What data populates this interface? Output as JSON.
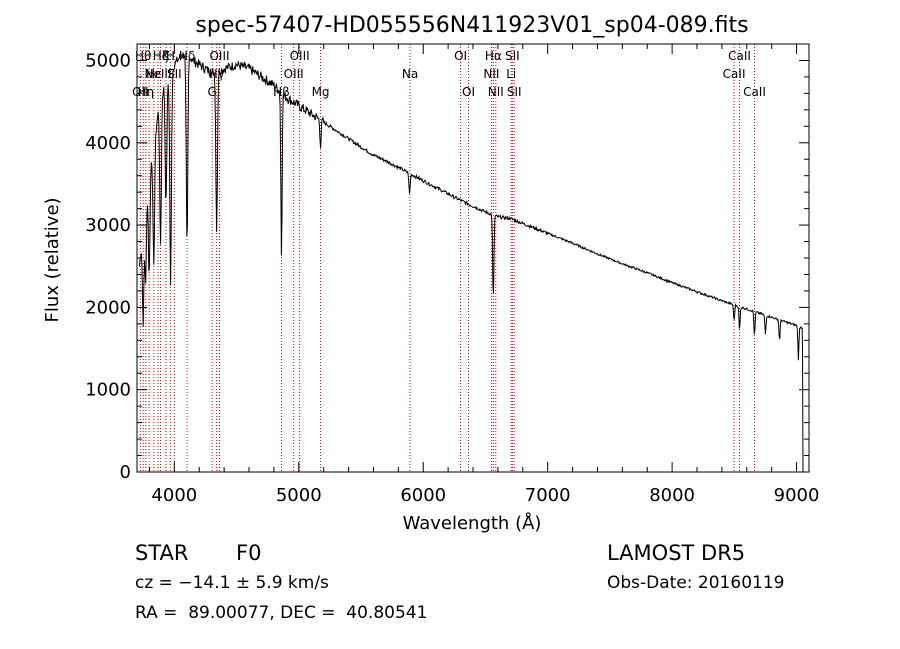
{
  "chart_data": {
    "type": "line",
    "title": "spec-57407-HD055556N411923V01_sp04-089.fits",
    "xlabel": "Wavelength (Å)",
    "ylabel": "Flux (relative)",
    "xlim": [
      3700,
      9100
    ],
    "ylim": [
      0,
      5200
    ],
    "x_ticks": [
      4000,
      5000,
      6000,
      7000,
      8000,
      9000
    ],
    "y_ticks": [
      0,
      1000,
      2000,
      3000,
      4000,
      5000
    ],
    "series": [
      {
        "x": [
          3700,
          3720,
          3760,
          3800,
          3840,
          3880,
          3920,
          3960,
          4000,
          4050,
          4100,
          4150,
          4200,
          4300,
          4400,
          4500,
          4600,
          4700,
          4800,
          4900,
          5000,
          5100,
          5200,
          5300,
          5400,
          5500,
          5600,
          5700,
          5800,
          5900,
          6000,
          6100,
          6200,
          6300,
          6400,
          6500,
          6600,
          6700,
          6800,
          6900,
          7000,
          7200,
          7400,
          7600,
          7800,
          8000,
          8200,
          8400,
          8500,
          8600,
          8700,
          8800,
          8900,
          9000,
          9050
        ],
        "y": [
          1300,
          2500,
          3200,
          3700,
          4000,
          4500,
          4700,
          4800,
          4950,
          5050,
          5100,
          5000,
          4950,
          4850,
          4900,
          4950,
          4900,
          4800,
          4700,
          4550,
          4450,
          4350,
          4250,
          4150,
          4050,
          3950,
          3850,
          3780,
          3700,
          3620,
          3540,
          3460,
          3380,
          3300,
          3230,
          3160,
          3100,
          3080,
          3020,
          2960,
          2900,
          2780,
          2650,
          2530,
          2420,
          2300,
          2190,
          2080,
          2030,
          1980,
          1930,
          1880,
          1830,
          1780,
          1750
        ]
      }
    ],
    "absorption_lines": [
      {
        "x": 3750,
        "depth": 1200
      },
      {
        "x": 3770,
        "depth": 1000
      },
      {
        "x": 3798,
        "depth": 1300
      },
      {
        "x": 3835,
        "depth": 1500
      },
      {
        "x": 3889,
        "depth": 1800
      },
      {
        "x": 3933,
        "depth": 1500
      },
      {
        "x": 3970,
        "depth": 2600
      },
      {
        "x": 4102,
        "depth": 2400
      },
      {
        "x": 4340,
        "depth": 1900
      },
      {
        "x": 4861,
        "depth": 2000
      },
      {
        "x": 5175,
        "depth": 300
      },
      {
        "x": 5890,
        "depth": 250
      },
      {
        "x": 6563,
        "depth": 1050
      },
      {
        "x": 8498,
        "depth": 200
      },
      {
        "x": 8542,
        "depth": 300
      },
      {
        "x": 8662,
        "depth": 300
      },
      {
        "x": 8750,
        "depth": 230
      },
      {
        "x": 8863,
        "depth": 250
      },
      {
        "x": 9015,
        "depth": 400
      }
    ],
    "reference_lines": [
      {
        "x": 3727,
        "label": "OII",
        "row": 2
      },
      {
        "x": 3750,
        "label": "Hθ",
        "row": 0
      },
      {
        "x": 3771,
        "label": "Hη",
        "row": 2
      },
      {
        "x": 3798,
        "label": "",
        "row": 0
      },
      {
        "x": 3835,
        "label": "Hε",
        "row": 1
      },
      {
        "x": 3869,
        "label": "NeIII",
        "row": 1
      },
      {
        "x": 3889,
        "label": "Hζ",
        "row": 0
      },
      {
        "x": 3933,
        "label": "K",
        "row": 0
      },
      {
        "x": 3968,
        "label": "H",
        "row": 0
      },
      {
        "x": 4000,
        "label": "SII",
        "row": 1
      },
      {
        "x": 4102,
        "label": "Hδ",
        "row": 0
      },
      {
        "x": 4304,
        "label": "G",
        "row": 2
      },
      {
        "x": 4340,
        "label": "Hγ",
        "row": 1
      },
      {
        "x": 4363,
        "label": "OIII",
        "row": 0
      },
      {
        "x": 4861,
        "label": "Hβ",
        "row": 2
      },
      {
        "x": 4959,
        "label": "OIII",
        "row": 1
      },
      {
        "x": 5007,
        "label": "OIII",
        "row": 0
      },
      {
        "x": 5175,
        "label": "Mg",
        "row": 2
      },
      {
        "x": 5894,
        "label": "Na",
        "row": 1
      },
      {
        "x": 6300,
        "label": "OI",
        "row": 0
      },
      {
        "x": 6364,
        "label": "OI",
        "row": 2
      },
      {
        "x": 6548,
        "label": "NII",
        "row": 1
      },
      {
        "x": 6563,
        "label": "Hα",
        "row": 0
      },
      {
        "x": 6583,
        "label": "NII",
        "row": 2
      },
      {
        "x": 6707,
        "label": "Li",
        "row": 1
      },
      {
        "x": 6716,
        "label": "SII",
        "row": 0
      },
      {
        "x": 6731,
        "label": "SII",
        "row": 2
      },
      {
        "x": 8498,
        "label": "CaII",
        "row": 1
      },
      {
        "x": 8542,
        "label": "CaII",
        "row": 0
      },
      {
        "x": 8662,
        "label": "CaII",
        "row": 2
      }
    ]
  },
  "footer": {
    "object_class": "STAR",
    "subclass": "F0",
    "redshift": "cz = −14.1 ± 5.9 km/s",
    "coords": "RA =  89.00077, DEC =  40.80541",
    "survey": "LAMOST DR5",
    "obs_date": "Obs-Date: 20160119"
  }
}
